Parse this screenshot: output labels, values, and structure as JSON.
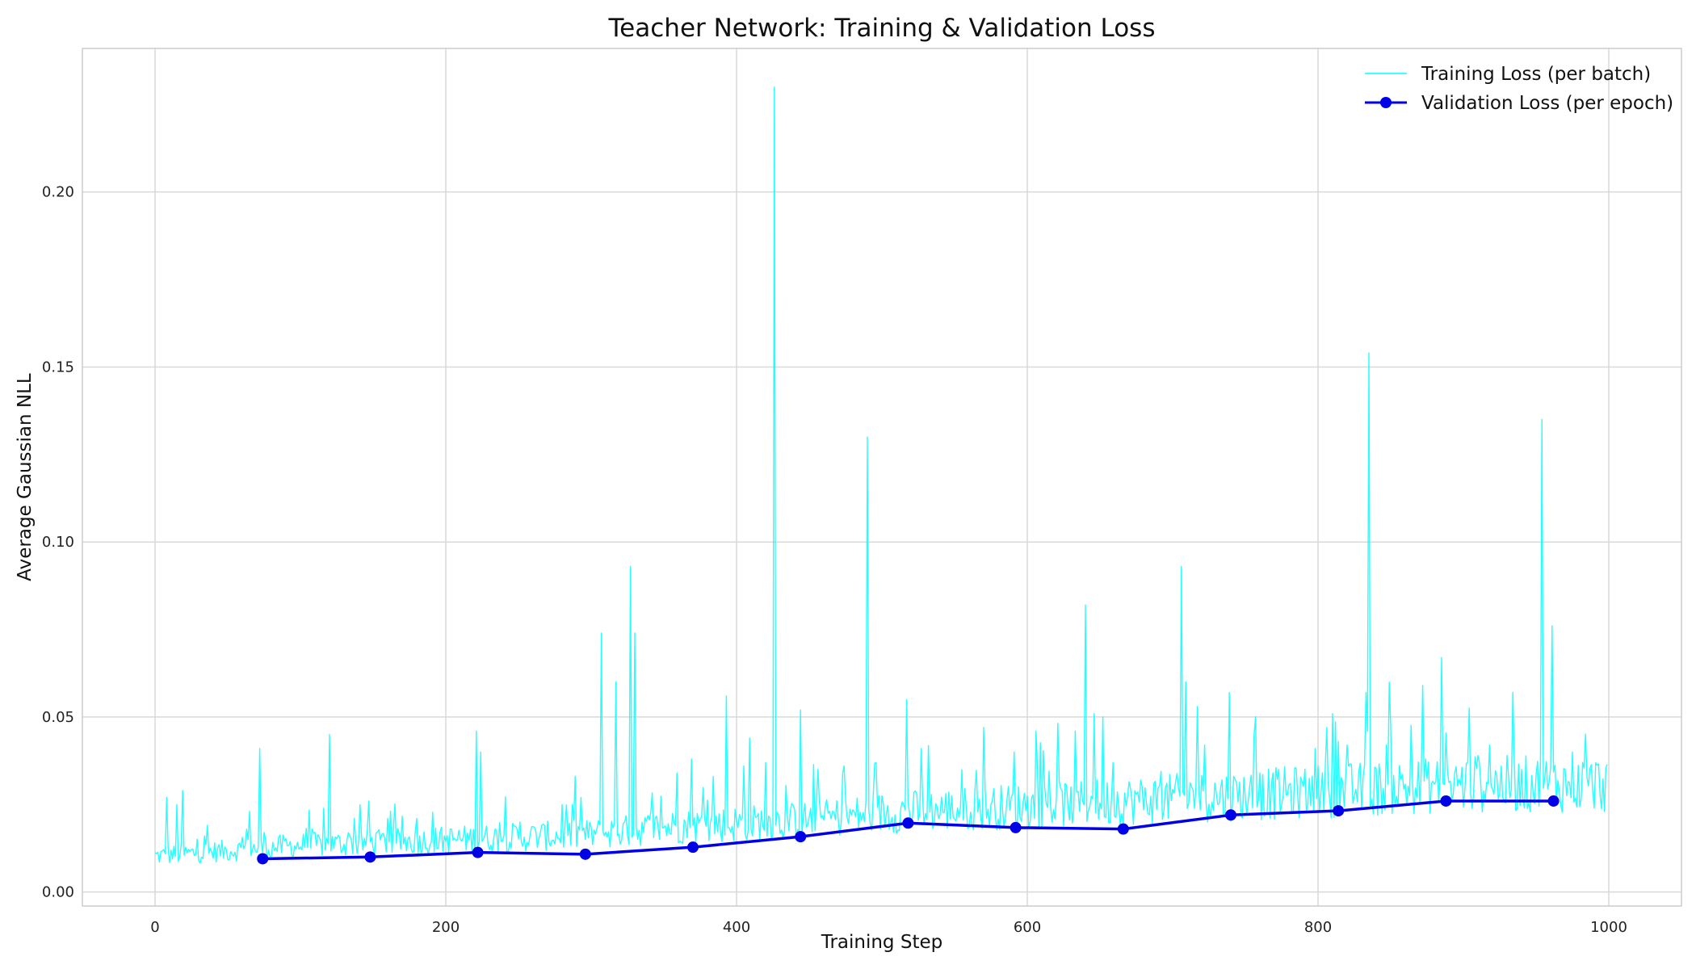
{
  "chart_data": {
    "type": "line",
    "title": "Teacher Network: Training & Validation Loss",
    "xlabel": "Training Step",
    "ylabel": "Average Gaussian NLL",
    "xlim": [
      -50,
      1050
    ],
    "ylim": [
      -0.004,
      0.241
    ],
    "xticks": [
      0,
      200,
      400,
      600,
      800,
      1000
    ],
    "yticks": [
      0.0,
      0.05,
      0.1,
      0.15,
      0.2
    ],
    "xtick_labels": [
      "0",
      "200",
      "400",
      "600",
      "800",
      "1000"
    ],
    "ytick_labels": [
      "0.00",
      "0.05",
      "0.10",
      "0.15",
      "0.20"
    ],
    "grid": true,
    "legend_position": "top-right",
    "series": [
      {
        "name": "Training Loss (per batch)",
        "style": "line",
        "color": "#00FFFF",
        "n_points": 1000,
        "baseline_knots": [
          [
            0,
            0.01
          ],
          [
            100,
            0.013
          ],
          [
            200,
            0.0145
          ],
          [
            300,
            0.016
          ],
          [
            350,
            0.018
          ],
          [
            400,
            0.019
          ],
          [
            450,
            0.02
          ],
          [
            500,
            0.022
          ],
          [
            550,
            0.023
          ],
          [
            600,
            0.024
          ],
          [
            650,
            0.025
          ],
          [
            700,
            0.026
          ],
          [
            750,
            0.027
          ],
          [
            800,
            0.028
          ],
          [
            850,
            0.029
          ],
          [
            900,
            0.03
          ],
          [
            1000,
            0.03
          ]
        ],
        "spikes": [
          [
            8,
            0.027
          ],
          [
            15,
            0.025
          ],
          [
            19,
            0.029
          ],
          [
            34,
            0.016
          ],
          [
            63,
            0.018
          ],
          [
            65,
            0.023
          ],
          [
            72,
            0.041
          ],
          [
            75,
            0.017
          ],
          [
            108,
            0.018
          ],
          [
            120,
            0.045
          ],
          [
            137,
            0.021
          ],
          [
            147,
            0.026
          ],
          [
            160,
            0.021
          ],
          [
            180,
            0.021
          ],
          [
            221,
            0.046
          ],
          [
            224,
            0.04
          ],
          [
            251,
            0.02
          ],
          [
            280,
            0.025
          ],
          [
            287,
            0.025
          ],
          [
            293,
            0.027
          ],
          [
            307,
            0.074
          ],
          [
            317,
            0.06
          ],
          [
            327,
            0.093
          ],
          [
            330,
            0.074
          ],
          [
            359,
            0.034
          ],
          [
            369,
            0.038
          ],
          [
            384,
            0.033
          ],
          [
            393,
            0.056
          ],
          [
            405,
            0.036
          ],
          [
            409,
            0.044
          ],
          [
            420,
            0.037
          ],
          [
            426,
            0.23
          ],
          [
            444,
            0.052
          ],
          [
            456,
            0.035
          ],
          [
            474,
            0.036
          ],
          [
            490,
            0.13
          ],
          [
            517,
            0.055
          ],
          [
            527,
            0.041
          ],
          [
            570,
            0.047
          ],
          [
            591,
            0.04
          ],
          [
            633,
            0.046
          ],
          [
            640,
            0.082
          ],
          [
            646,
            0.051
          ],
          [
            652,
            0.05
          ],
          [
            659,
            0.037
          ],
          [
            706,
            0.093
          ],
          [
            709,
            0.06
          ],
          [
            717,
            0.053
          ],
          [
            722,
            0.042
          ],
          [
            739,
            0.057
          ],
          [
            760,
            0.034
          ],
          [
            798,
            0.041
          ],
          [
            806,
            0.047
          ],
          [
            810,
            0.051
          ],
          [
            814,
            0.043
          ],
          [
            820,
            0.042
          ],
          [
            833,
            0.057
          ],
          [
            835,
            0.154
          ],
          [
            847,
            0.042
          ],
          [
            872,
            0.059
          ],
          [
            885,
            0.067
          ],
          [
            918,
            0.042
          ],
          [
            940,
            0.035
          ],
          [
            954,
            0.135
          ],
          [
            961,
            0.076
          ],
          [
            975,
            0.04
          ]
        ]
      },
      {
        "name": "Validation Loss (per epoch)",
        "style": "line-marker",
        "color": "#0000E6",
        "x": [
          74,
          148,
          222,
          296,
          370,
          444,
          518,
          592,
          666,
          740,
          814,
          888,
          962
        ],
        "y": [
          0.0095,
          0.01,
          0.0113,
          0.0108,
          0.0128,
          0.0158,
          0.0197,
          0.0184,
          0.018,
          0.022,
          0.0232,
          0.026,
          0.026
        ]
      }
    ]
  }
}
